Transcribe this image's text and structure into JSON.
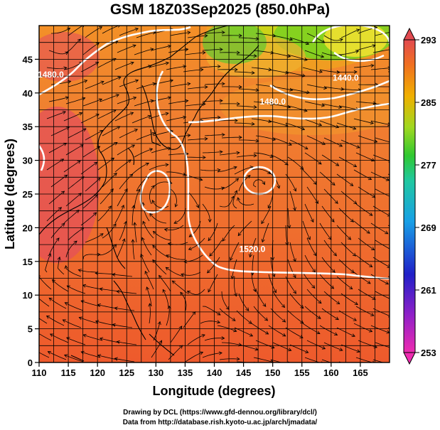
{
  "title": "GSM 18Z03Sep2025 (850.0hPa)",
  "x_axis": {
    "label": "Longitude (degrees)",
    "range": [
      110,
      170
    ],
    "ticks": [
      110,
      115,
      120,
      125,
      130,
      135,
      140,
      145,
      150,
      155,
      160,
      165
    ]
  },
  "y_axis": {
    "label": "Latitude  (degrees)",
    "range": [
      0,
      50
    ],
    "ticks": [
      0,
      5,
      10,
      15,
      20,
      25,
      30,
      35,
      40,
      45
    ]
  },
  "colorbar": {
    "range": [
      253,
      293
    ],
    "ticks": [
      253,
      261,
      269,
      277,
      285,
      293
    ]
  },
  "contour_labels": [
    {
      "text": "1480.0",
      "lon": 112,
      "lat": 42.3
    },
    {
      "text": "1440.0",
      "lon": 162.5,
      "lat": 41.8
    },
    {
      "text": "1480.0",
      "lon": 150,
      "lat": 38.3
    },
    {
      "text": "1520.0",
      "lon": 146.5,
      "lat": 16.4
    }
  ],
  "credits": {
    "line1": "Drawing by DCL (https://www.gfd-dennou.org/library/dcl/)",
    "line2": "Data from http://database.rish.kyoto-u.ac.jp/arch/jmadata/"
  }
}
